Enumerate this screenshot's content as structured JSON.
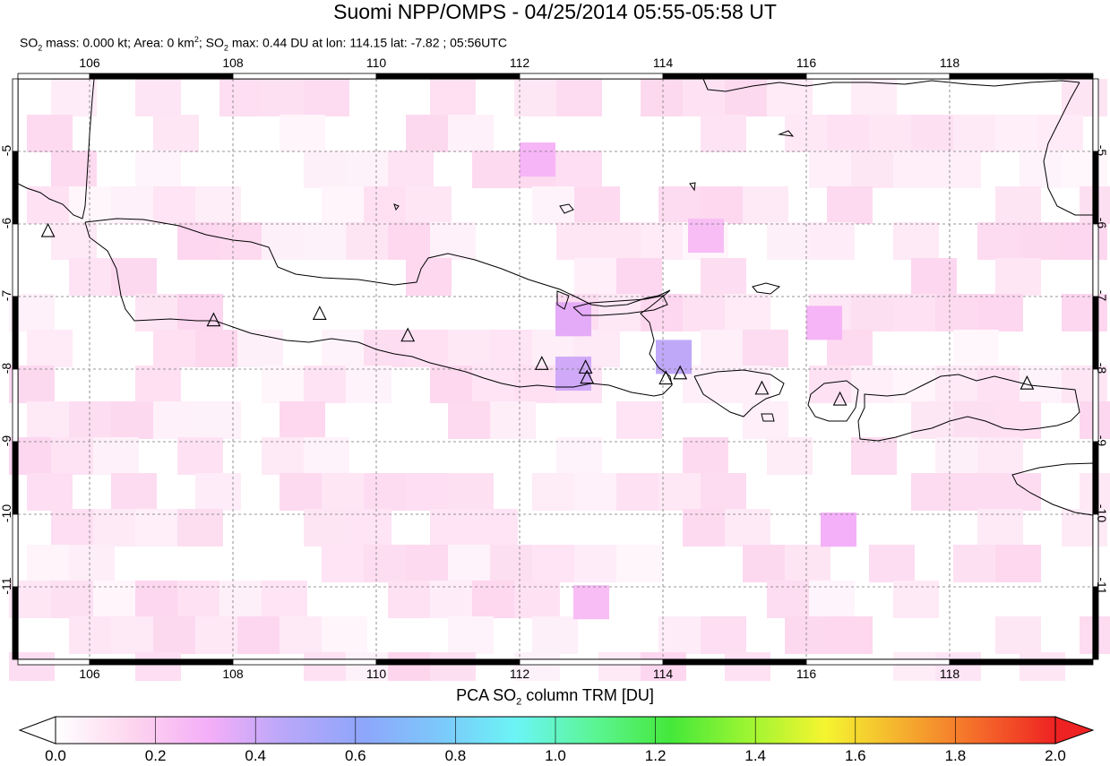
{
  "header": {
    "title": "Suomi NPP/OMPS - 04/25/2014 05:55-05:58 UT",
    "subtitle_parts": [
      "SO",
      "2",
      " mass: 0.000 kt; Area: 0 km",
      "2",
      "; SO",
      "2",
      " max: 0.44 DU at lon: 114.15 lat: -7.82 ; 05:56UTC"
    ]
  },
  "map": {
    "lon_range": [
      105.0,
      120.0
    ],
    "lat_range": [
      -12.0,
      -4.0
    ],
    "lon_ticks": [
      "106",
      "108",
      "110",
      "112",
      "114",
      "116",
      "118"
    ],
    "lon_tick_values": [
      106,
      108,
      110,
      112,
      114,
      116,
      118
    ],
    "lat_ticks": [
      "-5",
      "-6",
      "-7",
      "-8",
      "-9",
      "-10",
      "-11"
    ],
    "lat_tick_values": [
      -5,
      -6,
      -7,
      -8,
      -9,
      -10,
      -11
    ],
    "grid": true,
    "volcano_marker": "triangle-outline",
    "volcanoes": [
      {
        "lon": 105.42,
        "lat": -6.1
      },
      {
        "lon": 107.73,
        "lat": -7.33
      },
      {
        "lon": 109.21,
        "lat": -7.24
      },
      {
        "lon": 110.44,
        "lat": -7.54
      },
      {
        "lon": 112.31,
        "lat": -7.93
      },
      {
        "lon": 112.92,
        "lat": -7.98
      },
      {
        "lon": 112.94,
        "lat": -8.12
      },
      {
        "lon": 114.04,
        "lat": -8.13
      },
      {
        "lon": 114.24,
        "lat": -8.06
      },
      {
        "lon": 115.38,
        "lat": -8.27
      },
      {
        "lon": 116.47,
        "lat": -8.42
      },
      {
        "lon": 119.08,
        "lat": -8.2
      }
    ],
    "so2_max_cells": [
      {
        "lon": 112.75,
        "lat": -7.3,
        "du": 0.35
      },
      {
        "lon": 112.75,
        "lat": -8.05,
        "du": 0.4
      },
      {
        "lon": 114.15,
        "lat": -7.82,
        "du": 0.44
      },
      {
        "lon": 116.45,
        "lat": -10.2,
        "du": 0.3
      },
      {
        "lon": 112.25,
        "lat": -5.1,
        "du": 0.28
      },
      {
        "lon": 116.25,
        "lat": -7.35,
        "du": 0.28
      },
      {
        "lon": 113.0,
        "lat": -11.2,
        "du": 0.25
      },
      {
        "lon": 114.6,
        "lat": -6.15,
        "du": 0.25
      }
    ]
  },
  "colorbar": {
    "title_parts": [
      "PCA SO",
      "2",
      " column TRM [DU]"
    ],
    "ticks": [
      "0.0",
      "0.2",
      "0.4",
      "0.6",
      "0.8",
      "1.0",
      "1.2",
      "1.4",
      "1.6",
      "1.8",
      "2.0"
    ],
    "range": [
      0.0,
      2.0
    ],
    "colors": [
      "#ffffff",
      "#fdd5ee",
      "#f4aef8",
      "#b8a7f9",
      "#8ea6fb",
      "#7cc8fb",
      "#6bf5f5",
      "#5cf595",
      "#44e83a",
      "#9cf532",
      "#f5f530",
      "#f5b02e",
      "#f56a2a",
      "#ee2222"
    ]
  }
}
